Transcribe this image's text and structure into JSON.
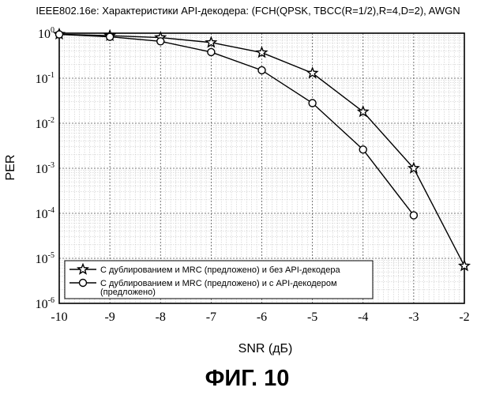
{
  "figure_caption": "ФИГ. 10",
  "chart_data": {
    "type": "line",
    "title": "IEEE802.16e: Характеристики API-декодера: (FCH(QPSK, TBCC(R=1/2),R=4,D=2), AWGN",
    "xlabel": "SNR (дБ)",
    "ylabel": "PER",
    "y_scale": "log",
    "xlim": [
      -10,
      -2
    ],
    "ylim_exponents": [
      -6,
      0
    ],
    "x_ticks": [
      "-10",
      "-9",
      "-8",
      "-7",
      "-6",
      "-5",
      "-4",
      "-3",
      "-2"
    ],
    "y_tick_base": "10",
    "y_ticks_exp": [
      "0",
      "-1",
      "-2",
      "-3",
      "-4",
      "-5",
      "-6"
    ],
    "grid": true,
    "legend_position": "bottom-left",
    "series": [
      {
        "name": "С дублированием и MRC (предложено) и без API-декодера",
        "marker": "star",
        "color": "#000000",
        "points": [
          {
            "x": -10,
            "y": 0.95
          },
          {
            "x": -9,
            "y": 0.88
          },
          {
            "x": -8,
            "y": 0.8
          },
          {
            "x": -7,
            "y": 0.62
          },
          {
            "x": -6,
            "y": 0.37
          },
          {
            "x": -5,
            "y": 0.13
          },
          {
            "x": -4,
            "y": 0.018
          },
          {
            "x": -3,
            "y": 0.001
          },
          {
            "x": -2,
            "y": 6.8e-06
          }
        ]
      },
      {
        "name": "С дублированием и MRC (предложено) и с API-декодером (предложено)",
        "name_lines": [
          "С дублированием и MRC (предложено) и с API-декодером",
          "(предложено)"
        ],
        "marker": "circle",
        "color": "#000000",
        "points": [
          {
            "x": -10,
            "y": 0.94
          },
          {
            "x": -9,
            "y": 0.83
          },
          {
            "x": -8,
            "y": 0.66
          },
          {
            "x": -7,
            "y": 0.38
          },
          {
            "x": -6,
            "y": 0.15
          },
          {
            "x": -5,
            "y": 0.028
          },
          {
            "x": -4,
            "y": 0.0026
          },
          {
            "x": -3,
            "y": 9e-05
          }
        ]
      }
    ]
  }
}
